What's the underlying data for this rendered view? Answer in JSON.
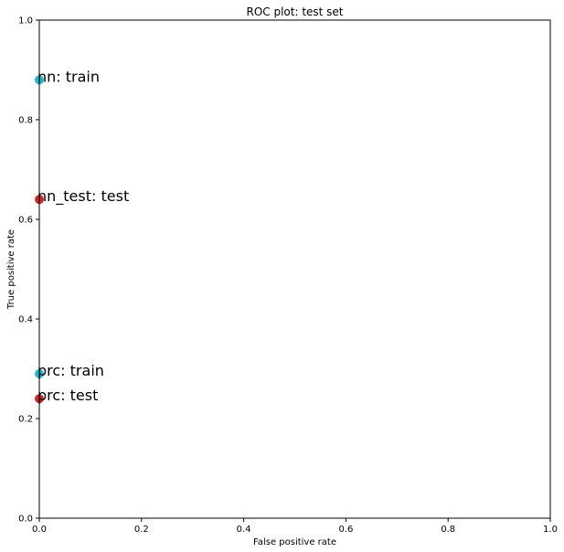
{
  "chart_data": {
    "type": "scatter",
    "title": "ROC plot: test set",
    "xlabel": "False positive rate",
    "ylabel": "True positive rate",
    "xlim": [
      0,
      1
    ],
    "ylim": [
      0,
      1
    ],
    "grid": false,
    "x_ticks": [
      "0.0",
      "0.2",
      "0.4",
      "0.6",
      "0.8",
      "1.0"
    ],
    "y_ticks": [
      "0.0",
      "0.2",
      "0.4",
      "0.6",
      "0.8",
      "1.0"
    ],
    "points": [
      {
        "label": "nn: train",
        "x": 0.0,
        "y": 0.88,
        "color": "#17becf"
      },
      {
        "label": "nn_test: test",
        "x": 0.0,
        "y": 0.64,
        "color": "#d62728"
      },
      {
        "label": "prc: train",
        "x": 0.0,
        "y": 0.29,
        "color": "#17becf"
      },
      {
        "label": "prc: test",
        "x": 0.0,
        "y": 0.24,
        "color": "#d62728"
      }
    ]
  }
}
